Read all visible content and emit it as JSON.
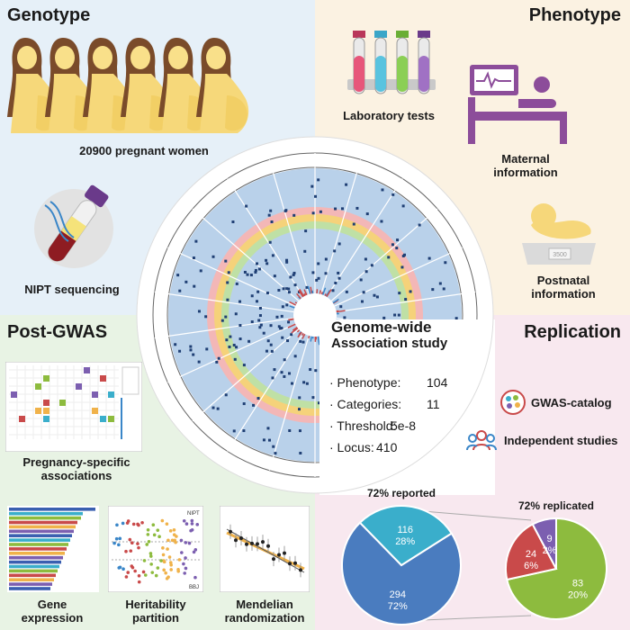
{
  "sections": {
    "genotype": {
      "title": "Genotype",
      "women_label": "20900 pregnant women",
      "nipt_label": "NIPT sequencing"
    },
    "phenotype": {
      "title": "Phenotype",
      "lab_label": "Laboratory tests",
      "maternal_label_1": "Maternal",
      "maternal_label_2": "information",
      "postnatal_label_1": "Postnatal",
      "postnatal_label_2": "information",
      "scale_reading": "3500"
    },
    "post_gwas": {
      "title": "Post-GWAS",
      "pregnancy_label_1": "Pregnancy-specific",
      "pregnancy_label_2": "associations",
      "gene_label_1": "Gene",
      "gene_label_2": "expression",
      "heritability_label_1": "Heritability",
      "heritability_label_2": "partition",
      "mendelian_label_1": "Mendelian",
      "mendelian_label_2": "randomization",
      "nipt_tag": "NIPT",
      "bbj_tag": "BBJ"
    },
    "replication": {
      "title": "Replication",
      "catalog_label": "GWAS-catalog",
      "independent_label": "Independent studies"
    }
  },
  "gwas": {
    "title_1": "Genome-wide",
    "title_2": "Association study",
    "stats": [
      {
        "key": "· Phenotype:",
        "value": "104"
      },
      {
        "key": "· Categories:",
        "value": "11"
      },
      {
        "key": "· Threshold:",
        "value": "5e-8"
      },
      {
        "key": "· Locus:",
        "value": "410"
      }
    ]
  },
  "chart_data": [
    {
      "type": "pie",
      "title": "72% reported",
      "slices": [
        {
          "value": 294,
          "label": "294",
          "pct": "72%",
          "color": "#4a7cbf"
        },
        {
          "value": 116,
          "label": "116",
          "pct": "28%",
          "color": "#3aaecb"
        }
      ]
    },
    {
      "type": "pie",
      "title": "72% replicated",
      "slices": [
        {
          "value": 83,
          "label": "83",
          "pct": "20%",
          "color": "#8dbb3e"
        },
        {
          "value": 24,
          "label": "24",
          "pct": "6%",
          "color": "#c94a4a"
        },
        {
          "value": 9,
          "label": "9",
          "pct": "2%",
          "color": "#7c5fb0"
        }
      ]
    }
  ],
  "colors": {
    "blue_ring": "#b9d1ea",
    "accent_purple": "#7a4a8f",
    "yellow": "#f6d77a"
  }
}
